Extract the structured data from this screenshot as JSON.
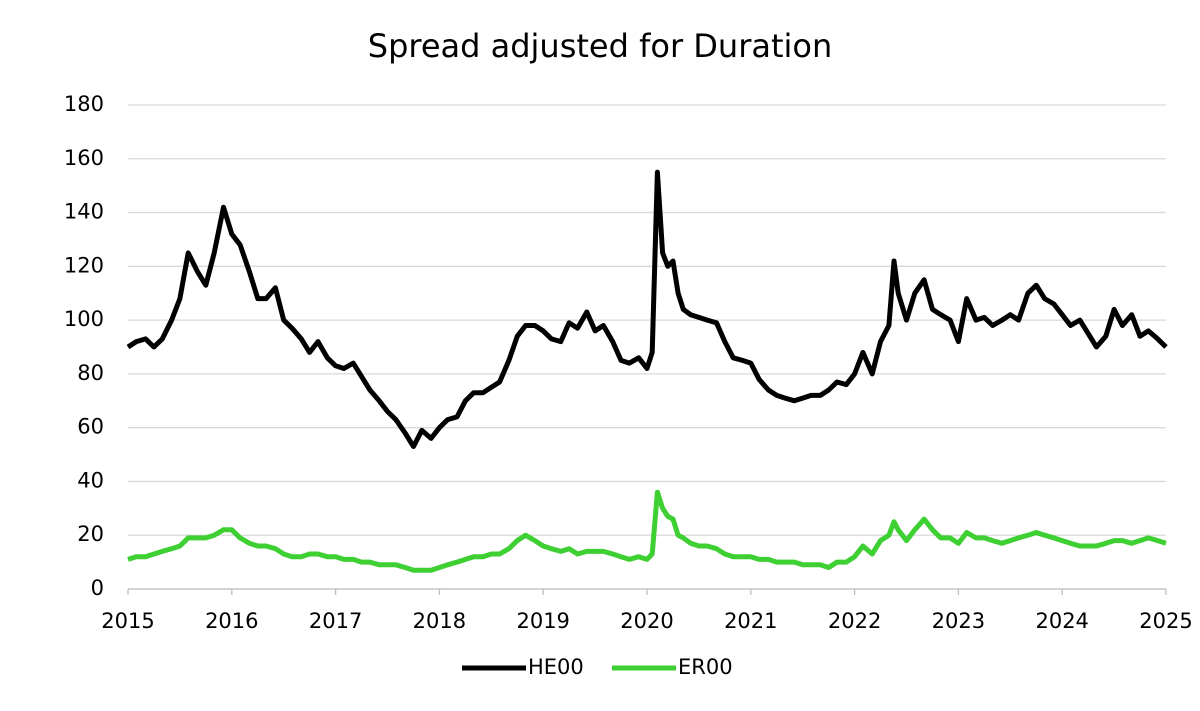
{
  "chart_data": {
    "type": "line",
    "title": "Spread adjusted for Duration",
    "x": [
      2015.0,
      2015.08,
      2015.17,
      2015.25,
      2015.33,
      2015.42,
      2015.5,
      2015.58,
      2015.67,
      2015.75,
      2015.83,
      2015.92,
      2016.0,
      2016.08,
      2016.17,
      2016.25,
      2016.33,
      2016.42,
      2016.5,
      2016.58,
      2016.67,
      2016.75,
      2016.83,
      2016.92,
      2017.0,
      2017.08,
      2017.17,
      2017.25,
      2017.33,
      2017.42,
      2017.5,
      2017.58,
      2017.67,
      2017.75,
      2017.83,
      2017.92,
      2018.0,
      2018.08,
      2018.17,
      2018.25,
      2018.33,
      2018.42,
      2018.5,
      2018.58,
      2018.67,
      2018.75,
      2018.83,
      2018.92,
      2019.0,
      2019.08,
      2019.17,
      2019.25,
      2019.33,
      2019.42,
      2019.5,
      2019.58,
      2019.67,
      2019.75,
      2019.83,
      2019.92,
      2020.0,
      2020.05,
      2020.1,
      2020.15,
      2020.2,
      2020.25,
      2020.3,
      2020.35,
      2020.42,
      2020.5,
      2020.58,
      2020.67,
      2020.75,
      2020.83,
      2020.92,
      2021.0,
      2021.08,
      2021.17,
      2021.25,
      2021.33,
      2021.42,
      2021.5,
      2021.58,
      2021.67,
      2021.75,
      2021.83,
      2021.92,
      2022.0,
      2022.08,
      2022.17,
      2022.25,
      2022.33,
      2022.38,
      2022.42,
      2022.5,
      2022.58,
      2022.67,
      2022.75,
      2022.83,
      2022.92,
      2023.0,
      2023.08,
      2023.17,
      2023.25,
      2023.33,
      2023.42,
      2023.5,
      2023.58,
      2023.67,
      2023.75,
      2023.83,
      2023.92,
      2024.0,
      2024.08,
      2024.17,
      2024.25,
      2024.33,
      2024.42,
      2024.5,
      2024.58,
      2024.67,
      2024.75,
      2024.83,
      2024.92,
      2025.0
    ],
    "series": [
      {
        "name": "HE00",
        "color": "#000000",
        "values": [
          90,
          92,
          93,
          90,
          93,
          100,
          108,
          125,
          118,
          113,
          125,
          142,
          132,
          128,
          118,
          108,
          108,
          112,
          100,
          97,
          93,
          88,
          92,
          86,
          83,
          82,
          84,
          79,
          74,
          70,
          66,
          63,
          58,
          53,
          59,
          56,
          60,
          63,
          64,
          70,
          73,
          73,
          75,
          77,
          85,
          94,
          98,
          98,
          96,
          93,
          92,
          99,
          97,
          103,
          96,
          98,
          92,
          85,
          84,
          86,
          82,
          88,
          155,
          125,
          120,
          122,
          110,
          104,
          102,
          101,
          100,
          99,
          92,
          86,
          85,
          84,
          78,
          74,
          72,
          71,
          70,
          71,
          72,
          72,
          74,
          77,
          76,
          80,
          88,
          80,
          92,
          98,
          122,
          110,
          100,
          110,
          115,
          104,
          102,
          100,
          92,
          108,
          100,
          101,
          98,
          100,
          102,
          100,
          110,
          113,
          108,
          106,
          102,
          98,
          100,
          95,
          90,
          94,
          104,
          98,
          102,
          94,
          96,
          93,
          90
        ]
      },
      {
        "name": "ER00",
        "color": "#3ecf33",
        "values": [
          11,
          12,
          12,
          13,
          14,
          15,
          16,
          19,
          19,
          19,
          20,
          22,
          22,
          19,
          17,
          16,
          16,
          15,
          13,
          12,
          12,
          13,
          13,
          12,
          12,
          11,
          11,
          10,
          10,
          9,
          9,
          9,
          8,
          7,
          7,
          7,
          8,
          9,
          10,
          11,
          12,
          12,
          13,
          13,
          15,
          18,
          20,
          18,
          16,
          15,
          14,
          15,
          13,
          14,
          14,
          14,
          13,
          12,
          11,
          12,
          11,
          13,
          36,
          30,
          27,
          26,
          20,
          19,
          17,
          16,
          16,
          15,
          13,
          12,
          12,
          12,
          11,
          11,
          10,
          10,
          10,
          9,
          9,
          9,
          8,
          10,
          10,
          12,
          16,
          13,
          18,
          20,
          25,
          22,
          18,
          22,
          26,
          22,
          19,
          19,
          17,
          21,
          19,
          19,
          18,
          17,
          18,
          19,
          20,
          21,
          20,
          19,
          18,
          17,
          16,
          16,
          16,
          17,
          18,
          18,
          17,
          18,
          19,
          18,
          17
        ]
      }
    ],
    "xlim": [
      2015,
      2025
    ],
    "xticks": [
      2015,
      2016,
      2017,
      2018,
      2019,
      2020,
      2021,
      2022,
      2023,
      2024,
      2025
    ],
    "ylim": [
      0,
      180
    ],
    "yticks": [
      0,
      20,
      40,
      60,
      80,
      100,
      120,
      140,
      160,
      180
    ],
    "grid": true,
    "legend": "bottom"
  }
}
